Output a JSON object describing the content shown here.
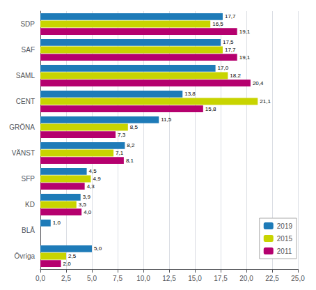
{
  "chart_data": {
    "type": "bar",
    "orientation": "horizontal",
    "categories": [
      "SDP",
      "SAF",
      "SAML",
      "CENT",
      "GRÖNA",
      "VÄNST",
      "SFP",
      "KD",
      "BLÅ",
      "Övriga"
    ],
    "series": [
      {
        "name": "2019",
        "color": "#1e7bb8",
        "values": [
          17.7,
          17.5,
          17.0,
          13.8,
          11.5,
          8.2,
          4.5,
          3.9,
          1.0,
          5.0
        ],
        "value_labels": [
          "17,7",
          "17,5",
          "17,0",
          "13,8",
          "11,5",
          "8,2",
          "4,5",
          "3,9",
          "1,0",
          "5,0"
        ]
      },
      {
        "name": "2015",
        "color": "#c8d400",
        "values": [
          16.5,
          17.7,
          18.2,
          21.1,
          8.5,
          7.1,
          4.9,
          3.5,
          0.0,
          2.5
        ],
        "value_labels": [
          "16,5",
          "17,7",
          "18,2",
          "21,1",
          "8,5",
          "7,1",
          "4,9",
          "3,5",
          null,
          "2,5"
        ]
      },
      {
        "name": "2011",
        "color": "#b5006e",
        "values": [
          19.1,
          19.1,
          20.4,
          15.8,
          7.3,
          8.1,
          4.3,
          4.0,
          0.0,
          2.0
        ],
        "value_labels": [
          "19,1",
          "19,1",
          "20,4",
          "15,8",
          "7,3",
          "8,1",
          "4,3",
          "4,0",
          null,
          "2,0"
        ]
      }
    ],
    "xlim": [
      0,
      25.0
    ],
    "xticks": [
      {
        "value": 0.0,
        "label": "0,0"
      },
      {
        "value": 2.5,
        "label": "2,5"
      },
      {
        "value": 5.0,
        "label": "5,0"
      },
      {
        "value": 7.5,
        "label": "7,5"
      },
      {
        "value": 10.0,
        "label": "10,0"
      },
      {
        "value": 12.5,
        "label": "12,5"
      },
      {
        "value": 15.0,
        "label": "15,0"
      },
      {
        "value": 17.5,
        "label": "17,5"
      },
      {
        "value": 20.0,
        "label": "20,0"
      },
      {
        "value": 22.5,
        "label": "22,5"
      },
      {
        "value": 25.0,
        "label": "25,0"
      }
    ],
    "grid": true,
    "legend": "lower right",
    "data_labels": true
  }
}
